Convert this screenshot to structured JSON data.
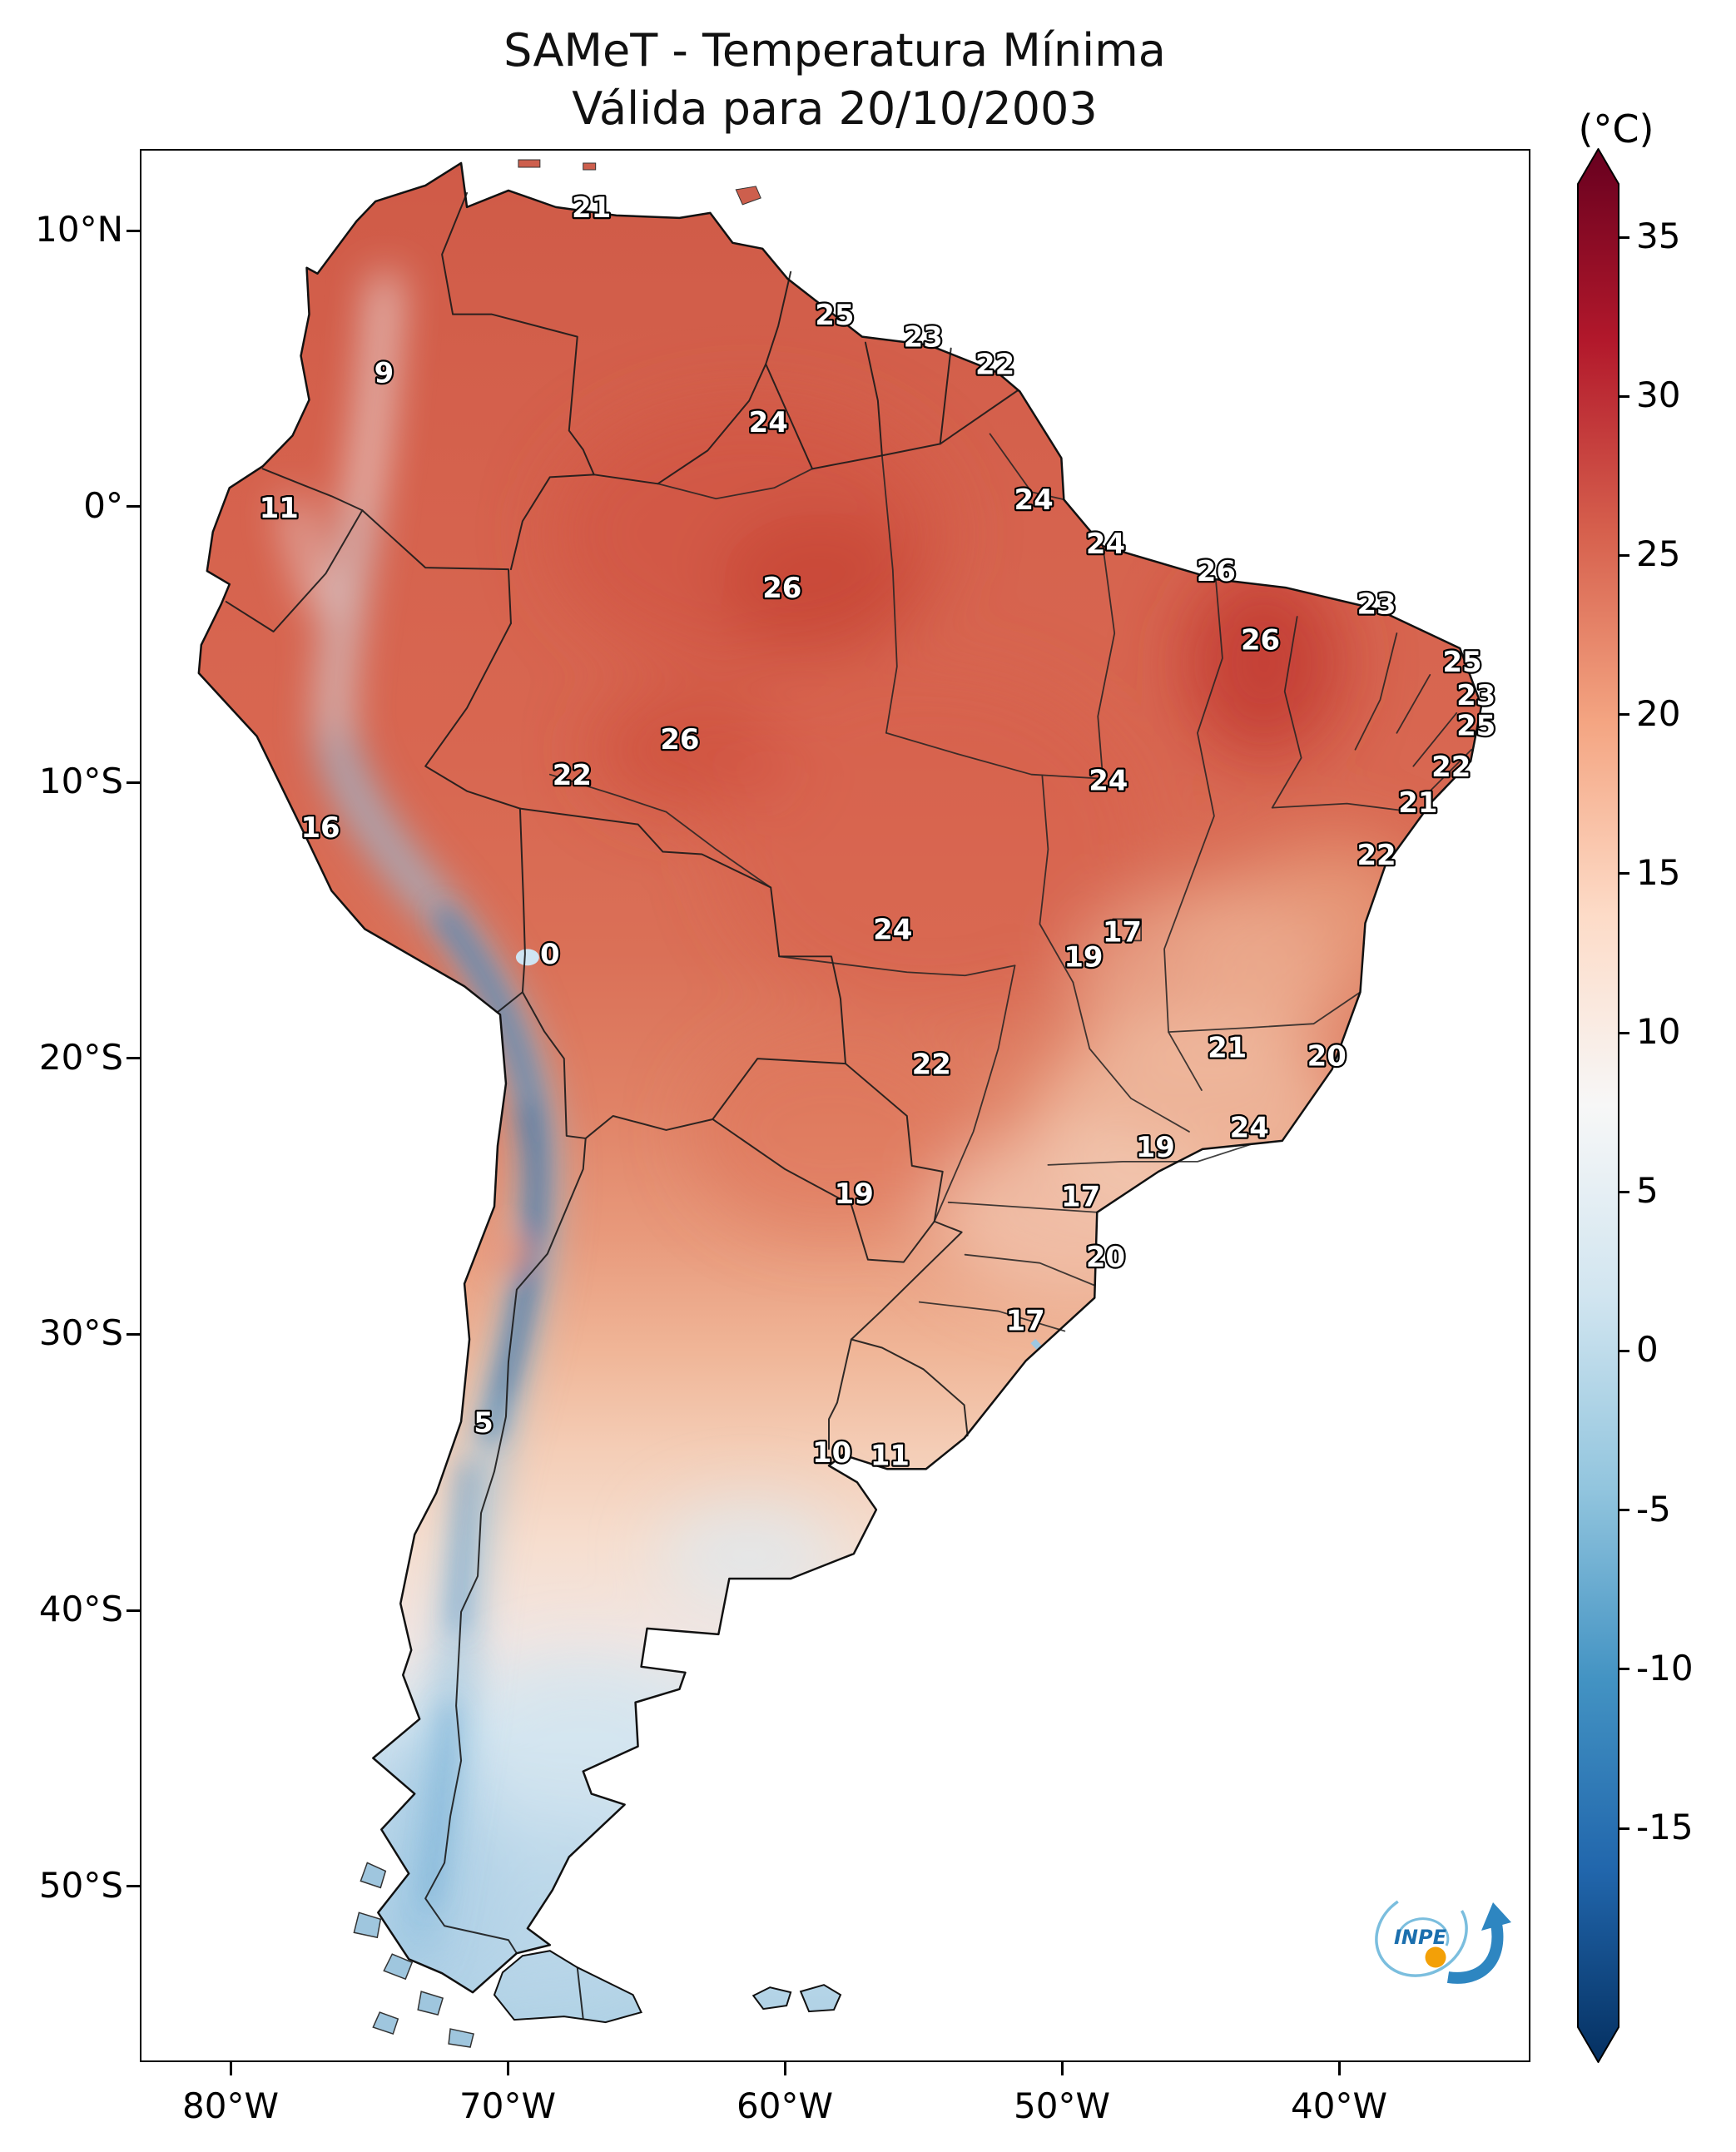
{
  "title": {
    "line1": "SAMeT - Temperatura Mínima",
    "line2": "Válida para 20/10/2003"
  },
  "colorbar": {
    "unit": "(°C)",
    "ticks": [
      {
        "label": "35",
        "value": 35
      },
      {
        "label": "30",
        "value": 30
      },
      {
        "label": "25",
        "value": 25
      },
      {
        "label": "20",
        "value": 20
      },
      {
        "label": "15",
        "value": 15
      },
      {
        "label": "10",
        "value": 10
      },
      {
        "label": "5",
        "value": 5
      },
      {
        "label": "0",
        "value": 0
      },
      {
        "label": "-5",
        "value": -5
      },
      {
        "label": "-10",
        "value": -10
      },
      {
        "label": "-15",
        "value": -15
      }
    ],
    "top_color": "#67001f",
    "bottom_color": "#053061"
  },
  "axes": {
    "y": [
      {
        "label": "10°N",
        "deg": 10
      },
      {
        "label": "0°",
        "deg": 0
      },
      {
        "label": "10°S",
        "deg": -10
      },
      {
        "label": "20°S",
        "deg": -20
      },
      {
        "label": "30°S",
        "deg": -30
      },
      {
        "label": "40°S",
        "deg": -40
      },
      {
        "label": "50°S",
        "deg": -50
      }
    ],
    "x": [
      {
        "label": "80°W",
        "deg": -80
      },
      {
        "label": "70°W",
        "deg": -70
      },
      {
        "label": "60°W",
        "deg": -60
      },
      {
        "label": "50°W",
        "deg": -50
      },
      {
        "label": "40°W",
        "deg": -40
      }
    ]
  },
  "logo": {
    "text": "INPE"
  },
  "chart_data": {
    "type": "heatmap",
    "title": "SAMeT - Temperatura Mínima",
    "subtitle": "Válida para 20/10/2003",
    "unit": "°C",
    "region": "South America",
    "colorbar_ticks": [
      35,
      30,
      25,
      20,
      15,
      10,
      5,
      0,
      -5,
      -10,
      -15
    ],
    "colorbar_range": [
      -17,
      37
    ],
    "colormap": "RdBu reversed (red warm top, blue cold bottom)",
    "x_tick_labels": [
      "80°W",
      "70°W",
      "60°W",
      "50°W",
      "40°W"
    ],
    "y_tick_labels": [
      "10°N",
      "0°",
      "10°S",
      "20°S",
      "30°S",
      "40°S",
      "50°S"
    ],
    "legend_position": "right",
    "point_values": [
      {
        "value": 21,
        "lon": -67.0,
        "lat": 10.9
      },
      {
        "value": 25,
        "lon": -58.2,
        "lat": 7.0
      },
      {
        "value": 23,
        "lon": -55.0,
        "lat": 6.2
      },
      {
        "value": 22,
        "lon": -52.4,
        "lat": 5.2
      },
      {
        "value": 9,
        "lon": -74.5,
        "lat": 4.9
      },
      {
        "value": 24,
        "lon": -60.6,
        "lat": 3.1
      },
      {
        "value": 11,
        "lon": -78.3,
        "lat": 0.0
      },
      {
        "value": 24,
        "lon": -51.0,
        "lat": 0.3
      },
      {
        "value": 24,
        "lon": -48.4,
        "lat": -1.3
      },
      {
        "value": 26,
        "lon": -44.4,
        "lat": -2.3
      },
      {
        "value": 26,
        "lon": -60.1,
        "lat": -2.9
      },
      {
        "value": 23,
        "lon": -38.6,
        "lat": -3.5
      },
      {
        "value": 26,
        "lon": -42.8,
        "lat": -4.8
      },
      {
        "value": 25,
        "lon": -35.5,
        "lat": -5.6
      },
      {
        "value": 23,
        "lon": -35.0,
        "lat": -6.8
      },
      {
        "value": 25,
        "lon": -35.0,
        "lat": -7.9
      },
      {
        "value": 26,
        "lon": -63.8,
        "lat": -8.4
      },
      {
        "value": 22,
        "lon": -35.9,
        "lat": -9.4
      },
      {
        "value": 22,
        "lon": -67.7,
        "lat": -9.7
      },
      {
        "value": 24,
        "lon": -48.3,
        "lat": -9.9
      },
      {
        "value": 21,
        "lon": -37.1,
        "lat": -10.7
      },
      {
        "value": 16,
        "lon": -76.8,
        "lat": -11.6
      },
      {
        "value": 22,
        "lon": -38.6,
        "lat": -12.6
      },
      {
        "value": 24,
        "lon": -56.1,
        "lat": -15.3
      },
      {
        "value": 17,
        "lon": -47.8,
        "lat": -15.4
      },
      {
        "value": 19,
        "lon": -49.2,
        "lat": -16.3
      },
      {
        "value": 0,
        "lon": -68.5,
        "lat": -16.2
      },
      {
        "value": 21,
        "lon": -44.0,
        "lat": -19.6
      },
      {
        "value": 20,
        "lon": -40.4,
        "lat": -19.9
      },
      {
        "value": 22,
        "lon": -54.7,
        "lat": -20.2
      },
      {
        "value": 24,
        "lon": -43.2,
        "lat": -22.5
      },
      {
        "value": 19,
        "lon": -46.6,
        "lat": -23.2
      },
      {
        "value": 19,
        "lon": -57.5,
        "lat": -24.9
      },
      {
        "value": 17,
        "lon": -49.3,
        "lat": -25.0
      },
      {
        "value": 20,
        "lon": -48.4,
        "lat": -27.2
      },
      {
        "value": 17,
        "lon": -51.3,
        "lat": -29.5
      },
      {
        "value": 5,
        "lon": -70.9,
        "lat": -33.2
      },
      {
        "value": 10,
        "lon": -58.3,
        "lat": -34.3
      },
      {
        "value": 11,
        "lon": -56.2,
        "lat": -34.4
      }
    ]
  }
}
